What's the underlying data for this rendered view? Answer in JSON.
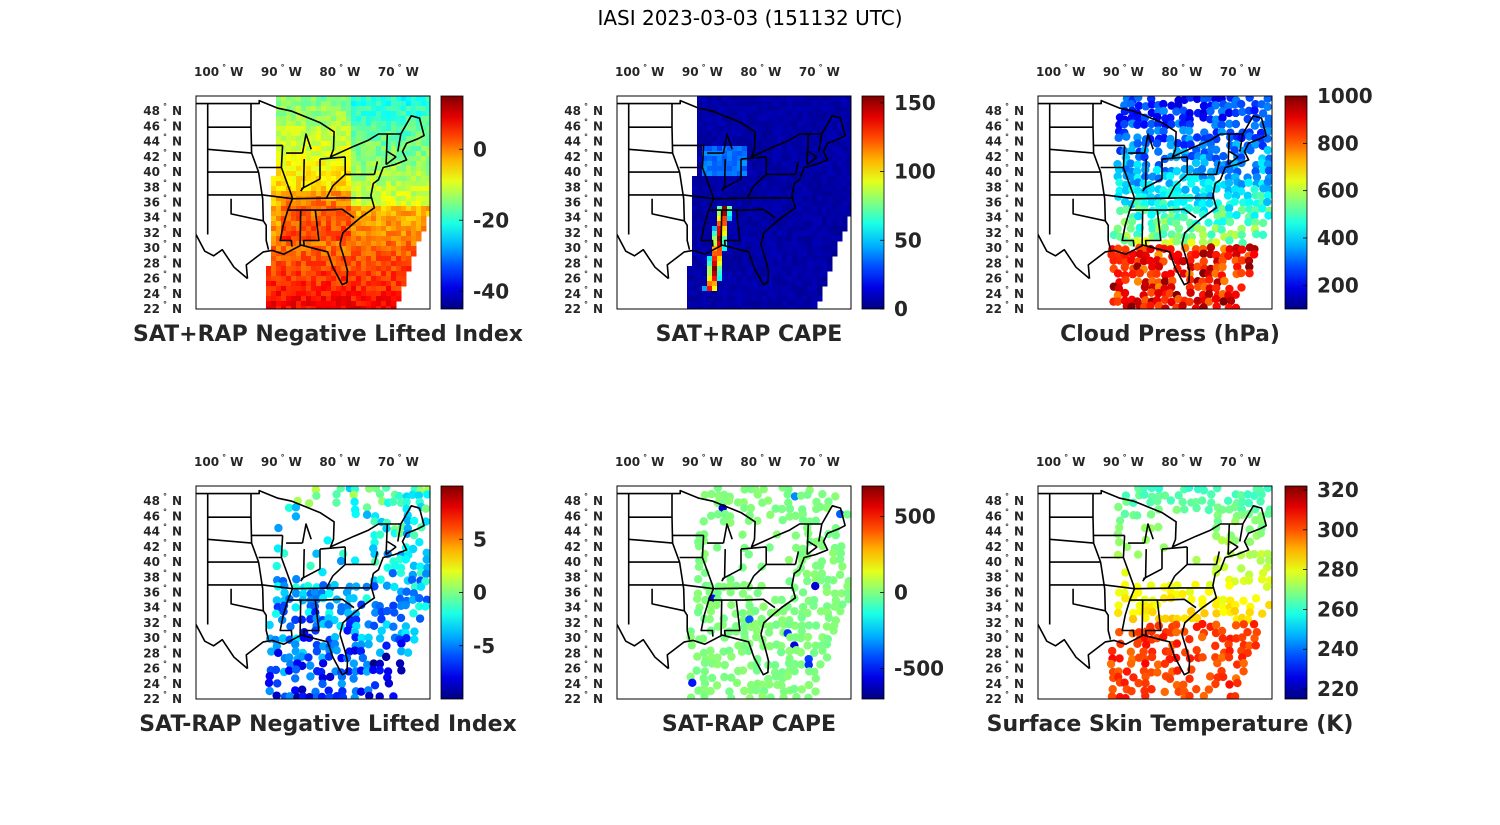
{
  "figure_title": "IASI 2023-03-03 (151132 UTC)",
  "map_common": {
    "lon_ticks": [
      "100",
      "90",
      "80",
      "70"
    ],
    "lon_suffix": "W",
    "lat_ticks": [
      "48",
      "46",
      "44",
      "42",
      "40",
      "38",
      "36",
      "34",
      "32",
      "30",
      "28",
      "26",
      "24",
      "22"
    ],
    "lat_suffix": "N",
    "degree_symbol": "°",
    "colormap": "jet"
  },
  "chart_data": [
    {
      "type": "heatmap",
      "title": "SAT+RAP Negative Lifted Index",
      "clim": [
        -45,
        15
      ],
      "colorbar_ticks": [
        0,
        -20,
        -40
      ],
      "swath": "full",
      "field": "gradient",
      "field_values": {
        "north": -15,
        "south": 8,
        "southeast_mid": 2
      }
    },
    {
      "type": "heatmap",
      "title": "SAT+RAP CAPE",
      "clim": [
        0,
        155
      ],
      "colorbar_ticks": [
        150,
        100,
        50,
        0
      ],
      "swath": "full",
      "field": "low_with_band",
      "field_values": {
        "background": 3,
        "band_peak": 150
      }
    },
    {
      "type": "heatmap",
      "title": "Cloud Press (hPa)",
      "clim": [
        100,
        1000
      ],
      "colorbar_ticks": [
        1000,
        800,
        600,
        400,
        200
      ],
      "swath": "cloudy_points",
      "field": "cloud_pressure",
      "field_values": {
        "north": 250,
        "south": 850
      }
    },
    {
      "type": "heatmap",
      "title": "SAT-RAP Negative Lifted Index",
      "clim": [
        -10,
        10
      ],
      "colorbar_ticks": [
        5,
        0,
        -5
      ],
      "swath": "sparse",
      "field": "difference",
      "field_values": {
        "north": -1,
        "south": -7
      }
    },
    {
      "type": "heatmap",
      "title": "SAT-RAP CAPE",
      "clim": [
        -700,
        700
      ],
      "colorbar_ticks": [
        500,
        0,
        -500
      ],
      "swath": "sparse",
      "field": "near_zero",
      "field_values": {
        "background": 0
      }
    },
    {
      "type": "heatmap",
      "title": "Surface Skin Temperature (K)",
      "clim": [
        215,
        322
      ],
      "colorbar_ticks": [
        320,
        300,
        280,
        260,
        240,
        220
      ],
      "swath": "sparse",
      "field": "skin_temperature",
      "field_values": {
        "north": 262,
        "south": 300
      }
    }
  ]
}
